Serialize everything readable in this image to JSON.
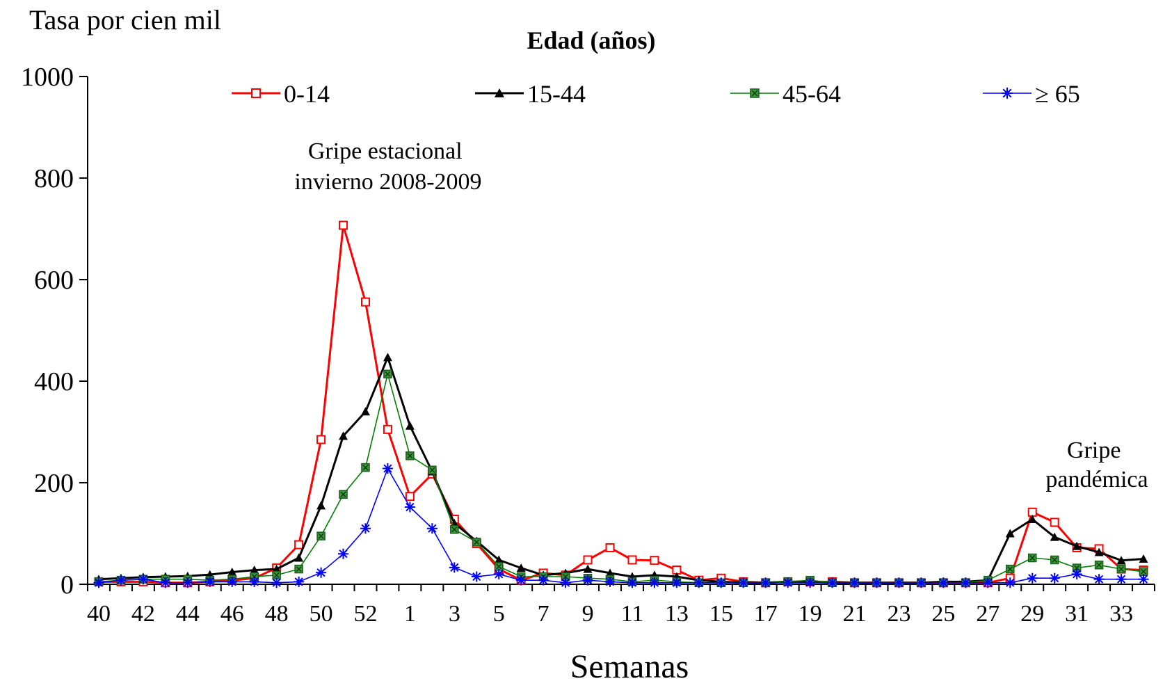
{
  "chart_data": {
    "type": "line",
    "ylabel": "Tasa por cien mil",
    "xlabel": "Semanas",
    "legend_title": "Edad (años)",
    "legend_position": "top",
    "ylim": [
      0,
      1000
    ],
    "yticks": [
      "0",
      "200",
      "400",
      "600",
      "800",
      "1000"
    ],
    "x_tick_labels": [
      "40",
      "42",
      "44",
      "46",
      "48",
      "50",
      "52",
      "1",
      "3",
      "5",
      "7",
      "9",
      "11",
      "13",
      "15",
      "17",
      "19",
      "21",
      "23",
      "25",
      "27",
      "29",
      "31",
      "33"
    ],
    "x": [
      40,
      41,
      42,
      43,
      44,
      45,
      46,
      47,
      48,
      49,
      50,
      51,
      52,
      53,
      1,
      2,
      3,
      4,
      5,
      6,
      7,
      8,
      9,
      10,
      11,
      12,
      13,
      14,
      15,
      16,
      17,
      18,
      19,
      20,
      21,
      22,
      23,
      24,
      25,
      26,
      27,
      28,
      29,
      30,
      31,
      32,
      33,
      34
    ],
    "grid": false,
    "annotations": [
      {
        "lines": [
          "Gripe estacional",
          "invierno 2008-2009"
        ]
      },
      {
        "lines": [
          "Gripe",
          "pandémica"
        ]
      }
    ],
    "series": [
      {
        "name": "0-14",
        "color": "#ff0000",
        "marker": "square-open",
        "values": [
          5,
          5,
          5,
          3,
          3,
          5,
          8,
          12,
          32,
          78,
          285,
          707,
          556,
          305,
          173,
          217,
          128,
          80,
          30,
          8,
          22,
          18,
          48,
          72,
          48,
          47,
          28,
          8,
          12,
          5,
          3,
          5,
          5,
          5,
          3,
          3,
          3,
          3,
          3,
          3,
          3,
          12,
          142,
          122,
          72,
          70,
          30,
          28
        ]
      },
      {
        "name": "15-44",
        "color": "#000000",
        "marker": "triangle",
        "values": [
          10,
          12,
          14,
          15,
          16,
          19,
          24,
          28,
          30,
          52,
          155,
          292,
          340,
          447,
          312,
          222,
          120,
          85,
          48,
          32,
          18,
          22,
          30,
          22,
          15,
          18,
          15,
          8,
          5,
          3,
          3,
          5,
          5,
          3,
          3,
          3,
          3,
          3,
          5,
          5,
          8,
          100,
          128,
          93,
          75,
          63,
          47,
          50
        ]
      },
      {
        "name": "45-64",
        "color": "#008000",
        "fill": "#3a9a3a",
        "marker": "square",
        "values": [
          5,
          8,
          10,
          10,
          10,
          8,
          10,
          15,
          18,
          30,
          95,
          177,
          230,
          414,
          253,
          225,
          108,
          83,
          35,
          15,
          15,
          15,
          12,
          10,
          5,
          8,
          5,
          3,
          3,
          3,
          3,
          5,
          8,
          3,
          3,
          3,
          3,
          3,
          3,
          3,
          8,
          30,
          52,
          48,
          32,
          38,
          30,
          25
        ]
      },
      {
        "name": "≥ 65",
        "color": "#0000ff",
        "marker": "star",
        "values": [
          3,
          8,
          10,
          3,
          3,
          5,
          5,
          5,
          3,
          5,
          23,
          60,
          110,
          228,
          152,
          110,
          33,
          15,
          20,
          8,
          8,
          3,
          8,
          5,
          3,
          3,
          3,
          3,
          3,
          3,
          3,
          3,
          3,
          3,
          3,
          3,
          3,
          3,
          3,
          3,
          3,
          3,
          12,
          12,
          20,
          10,
          10,
          10
        ]
      }
    ]
  }
}
